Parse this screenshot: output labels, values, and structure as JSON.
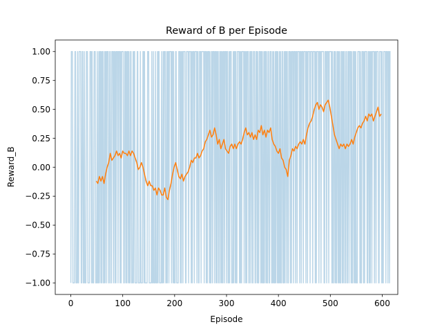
{
  "chart_data": {
    "type": "line",
    "title": "Reward of B per Episode",
    "xlabel": "Episode",
    "ylabel": "Reward_B",
    "xlim": [
      -30,
      630
    ],
    "ylim": [
      -1.1,
      1.1
    ],
    "xticks": [
      0,
      100,
      200,
      300,
      400,
      500,
      600
    ],
    "xtick_labels": [
      "0",
      "100",
      "200",
      "300",
      "400",
      "500",
      "600"
    ],
    "yticks": [
      -1.0,
      -0.75,
      -0.5,
      -0.25,
      0.0,
      0.25,
      0.5,
      0.75,
      1.0
    ],
    "ytick_labels": [
      "−1.00",
      "−0.75",
      "−0.50",
      "−0.25",
      "0.00",
      "0.25",
      "0.50",
      "0.75",
      "1.00"
    ],
    "grid": false,
    "series": [
      {
        "color": "#1f77b4",
        "opacity": 0.3,
        "x_start": 0,
        "x_step": 1,
        "values": [
          -1,
          1,
          1,
          1,
          -1,
          -1,
          -1,
          -1,
          1,
          1,
          -1,
          -1,
          -1,
          1,
          -1,
          -1,
          1,
          1,
          1,
          1,
          -1,
          -1,
          1,
          1,
          -1,
          -1,
          1,
          -1,
          -1,
          -1,
          1,
          1,
          1,
          -1,
          -1,
          -1,
          -1,
          1,
          1,
          1,
          -1,
          1,
          -1,
          -1,
          -1,
          1,
          1,
          1,
          -1,
          -1,
          -1,
          1,
          -1,
          -1,
          1,
          -1,
          1,
          1,
          -1,
          1,
          -1,
          1,
          1,
          -1,
          -1,
          1,
          -1,
          1,
          1,
          -1,
          1,
          1,
          1,
          -1,
          -1,
          1,
          1,
          -1,
          -1,
          1,
          1,
          1,
          -1,
          1,
          1,
          -1,
          1,
          -1,
          1,
          1,
          1,
          -1,
          1,
          1,
          1,
          -1,
          1,
          -1,
          1,
          1,
          1,
          1,
          -1,
          -1,
          1,
          1,
          -1,
          1,
          -1,
          1,
          1,
          -1,
          1,
          -1,
          -1,
          1,
          1,
          -1,
          -1,
          -1,
          1,
          -1,
          1,
          1,
          -1,
          -1,
          -1,
          -1,
          1,
          1,
          -1,
          -1,
          -1,
          -1,
          1,
          -1,
          -1,
          -1,
          -1,
          1,
          1,
          -1,
          1,
          -1,
          -1,
          -1,
          -1,
          -1,
          1,
          1,
          1,
          -1,
          -1,
          -1,
          -1,
          -1,
          1,
          -1,
          -1,
          1,
          -1,
          -1,
          -1,
          1,
          -1,
          -1,
          -1,
          1,
          -1,
          1,
          1,
          -1,
          -1,
          -1,
          -1,
          1,
          -1,
          -1,
          1,
          -1,
          1,
          1,
          1,
          -1,
          -1,
          1,
          -1,
          1,
          1,
          -1,
          1,
          1,
          1,
          1,
          -1,
          1,
          1,
          -1,
          1,
          -1,
          -1,
          -1,
          1,
          1,
          -1,
          -1,
          -1,
          -1,
          1,
          1,
          1,
          -1,
          1,
          -1,
          1,
          1,
          -1,
          1,
          1,
          1,
          1,
          -1,
          -1,
          1,
          1,
          1,
          1,
          -1,
          1,
          1,
          1,
          1,
          -1,
          1,
          -1,
          1,
          1,
          1,
          -1,
          1,
          1,
          1,
          1,
          -1,
          1,
          1,
          -1,
          -1,
          1,
          1,
          1,
          -1,
          1,
          1,
          1,
          1,
          1,
          -1,
          1,
          1,
          1,
          -1,
          1,
          -1,
          1,
          1,
          1,
          -1,
          1,
          -1,
          -1,
          1,
          1,
          -1,
          1,
          1,
          1,
          -1,
          1,
          1,
          -1,
          1,
          -1,
          1,
          1,
          -1,
          -1,
          1,
          1,
          -1,
          1,
          -1,
          1,
          -1,
          1,
          1,
          -1,
          1,
          1,
          1,
          -1,
          1,
          1,
          -1,
          -1,
          1,
          -1,
          1,
          1,
          1,
          -1,
          -1,
          -1,
          1,
          -1,
          1,
          1,
          -1,
          1,
          -1,
          -1,
          1,
          1,
          1,
          1,
          -1,
          1,
          -1,
          1,
          -1,
          1,
          1,
          1,
          1,
          -1,
          1,
          1,
          -1,
          1,
          -1,
          1,
          1,
          1,
          -1,
          -1,
          1,
          1,
          -1,
          1,
          1,
          -1,
          -1,
          1,
          1,
          1,
          -1,
          -1,
          1,
          1,
          -1,
          1,
          -1,
          -1,
          1,
          1,
          1,
          -1,
          1,
          -1,
          1,
          -1,
          -1,
          1,
          -1,
          1,
          1,
          -1,
          1,
          -1,
          -1,
          1,
          1,
          -1,
          -1,
          1,
          1,
          1,
          -1,
          -1,
          1,
          -1,
          1,
          -1,
          -1,
          1,
          -1,
          1,
          1,
          -1,
          1,
          -1,
          -1,
          1,
          -1,
          1,
          -1,
          -1,
          1,
          1,
          -1,
          -1,
          1,
          -1,
          1,
          1,
          -1,
          1,
          1,
          -1,
          -1,
          1,
          1,
          1,
          -1,
          1,
          -1,
          1,
          1,
          1,
          -1,
          1,
          1,
          1,
          -1,
          1,
          1,
          -1,
          1,
          1,
          1,
          1,
          -1,
          1,
          1,
          -1,
          1,
          1,
          1,
          -1,
          1,
          1,
          1,
          1,
          -1,
          1,
          1,
          -1,
          1,
          1,
          1,
          1,
          -1,
          1,
          1,
          1,
          1,
          -1,
          1,
          1,
          1,
          1,
          -1,
          1,
          -1,
          1,
          1,
          1,
          1,
          -1,
          1,
          1,
          1,
          -1,
          1,
          1,
          1,
          1,
          1,
          -1,
          -1,
          1,
          1,
          1,
          -1,
          1,
          1,
          1,
          -1,
          1,
          1,
          1,
          1,
          1,
          -1,
          1,
          -1,
          -1,
          1,
          1,
          -1,
          1,
          -1,
          -1,
          1,
          1,
          -1,
          1,
          -1,
          1,
          -1,
          -1,
          1,
          1,
          -1,
          1,
          -1,
          1,
          1,
          -1,
          -1,
          1,
          1,
          -1,
          -1,
          1,
          1,
          -1,
          1,
          1,
          1,
          -1,
          1,
          -1,
          -1,
          1,
          1,
          -1,
          1,
          -1,
          1,
          -1,
          -1,
          -1,
          1,
          1,
          1,
          1,
          -1,
          1,
          -1,
          -1,
          1,
          1,
          1,
          -1,
          1,
          -1,
          1,
          1,
          1,
          1,
          -1,
          -1,
          1,
          1,
          -1,
          1,
          -1,
          1,
          1,
          -1,
          1,
          1,
          1,
          1,
          -1,
          1,
          1,
          -1,
          1,
          1,
          1,
          1,
          -1,
          -1,
          1,
          1,
          1,
          1,
          -1,
          1,
          -1,
          -1,
          1,
          1,
          1,
          1,
          -1,
          1,
          1,
          1,
          -1,
          1,
          1,
          -1,
          1,
          1
        ]
      },
      {
        "color": "#ff7f0e",
        "x": [
          49,
          52,
          55,
          58,
          61,
          64,
          67,
          70,
          73,
          76,
          79,
          82,
          85,
          88,
          91,
          94,
          97,
          100,
          103,
          106,
          109,
          112,
          115,
          118,
          121,
          124,
          127,
          130,
          133,
          136,
          139,
          142,
          145,
          148,
          151,
          154,
          157,
          160,
          163,
          166,
          169,
          172,
          175,
          178,
          181,
          184,
          187,
          190,
          193,
          196,
          199,
          202,
          205,
          208,
          211,
          214,
          217,
          220,
          223,
          226,
          229,
          232,
          235,
          238,
          241,
          244,
          247,
          250,
          253,
          256,
          259,
          262,
          265,
          268,
          271,
          274,
          277,
          280,
          283,
          286,
          289,
          292,
          295,
          298,
          301,
          304,
          307,
          310,
          313,
          316,
          319,
          322,
          325,
          328,
          331,
          334,
          337,
          340,
          343,
          346,
          349,
          352,
          355,
          358,
          361,
          364,
          367,
          370,
          373,
          376,
          379,
          382,
          385,
          388,
          391,
          394,
          397,
          400,
          403,
          406,
          409,
          412,
          415,
          418,
          421,
          424,
          427,
          430,
          433,
          436,
          439,
          442,
          445,
          448,
          451,
          454,
          457,
          460,
          463,
          466,
          469,
          472,
          475,
          478,
          481,
          484,
          487,
          490,
          493,
          496,
          499,
          502,
          505,
          508,
          511,
          514,
          517,
          520,
          523,
          526,
          529,
          532,
          535,
          538,
          541,
          544,
          547,
          550,
          553,
          556,
          559,
          562,
          565,
          568,
          571,
          574,
          577,
          580,
          583,
          586,
          589,
          592,
          595,
          598
        ],
        "values": [
          -0.12,
          -0.14,
          -0.08,
          -0.12,
          -0.08,
          -0.14,
          -0.06,
          0.0,
          0.04,
          0.12,
          0.06,
          0.08,
          0.1,
          0.14,
          0.1,
          0.12,
          0.08,
          0.14,
          0.12,
          0.12,
          0.1,
          0.14,
          0.1,
          0.14,
          0.12,
          0.08,
          0.04,
          -0.02,
          0.0,
          0.04,
          0.0,
          -0.06,
          -0.12,
          -0.16,
          -0.12,
          -0.16,
          -0.16,
          -0.2,
          -0.18,
          -0.24,
          -0.18,
          -0.2,
          -0.24,
          -0.24,
          -0.18,
          -0.26,
          -0.28,
          -0.2,
          -0.14,
          -0.06,
          0.0,
          0.04,
          -0.02,
          -0.08,
          -0.1,
          -0.06,
          -0.12,
          -0.08,
          -0.06,
          -0.04,
          0.0,
          0.06,
          0.04,
          0.08,
          0.08,
          0.12,
          0.08,
          0.1,
          0.14,
          0.16,
          0.22,
          0.24,
          0.28,
          0.32,
          0.26,
          0.28,
          0.34,
          0.28,
          0.2,
          0.24,
          0.16,
          0.2,
          0.24,
          0.16,
          0.14,
          0.12,
          0.18,
          0.2,
          0.16,
          0.2,
          0.16,
          0.2,
          0.22,
          0.2,
          0.24,
          0.3,
          0.34,
          0.28,
          0.3,
          0.26,
          0.3,
          0.24,
          0.28,
          0.24,
          0.32,
          0.3,
          0.36,
          0.28,
          0.32,
          0.26,
          0.32,
          0.3,
          0.34,
          0.24,
          0.2,
          0.18,
          0.14,
          0.12,
          0.16,
          0.08,
          0.06,
          0.0,
          -0.02,
          -0.08,
          0.06,
          0.1,
          0.16,
          0.14,
          0.18,
          0.16,
          0.2,
          0.22,
          0.2,
          0.24,
          0.2,
          0.28,
          0.34,
          0.38,
          0.4,
          0.44,
          0.5,
          0.54,
          0.56,
          0.5,
          0.54,
          0.52,
          0.48,
          0.54,
          0.56,
          0.58,
          0.52,
          0.44,
          0.36,
          0.28,
          0.24,
          0.2,
          0.16,
          0.2,
          0.18,
          0.2,
          0.16,
          0.2,
          0.18,
          0.2,
          0.24,
          0.2,
          0.26,
          0.3,
          0.34,
          0.36,
          0.34,
          0.38,
          0.4,
          0.44,
          0.4,
          0.46,
          0.44,
          0.46,
          0.4,
          0.44,
          0.48,
          0.52,
          0.44,
          0.46
        ]
      }
    ]
  }
}
